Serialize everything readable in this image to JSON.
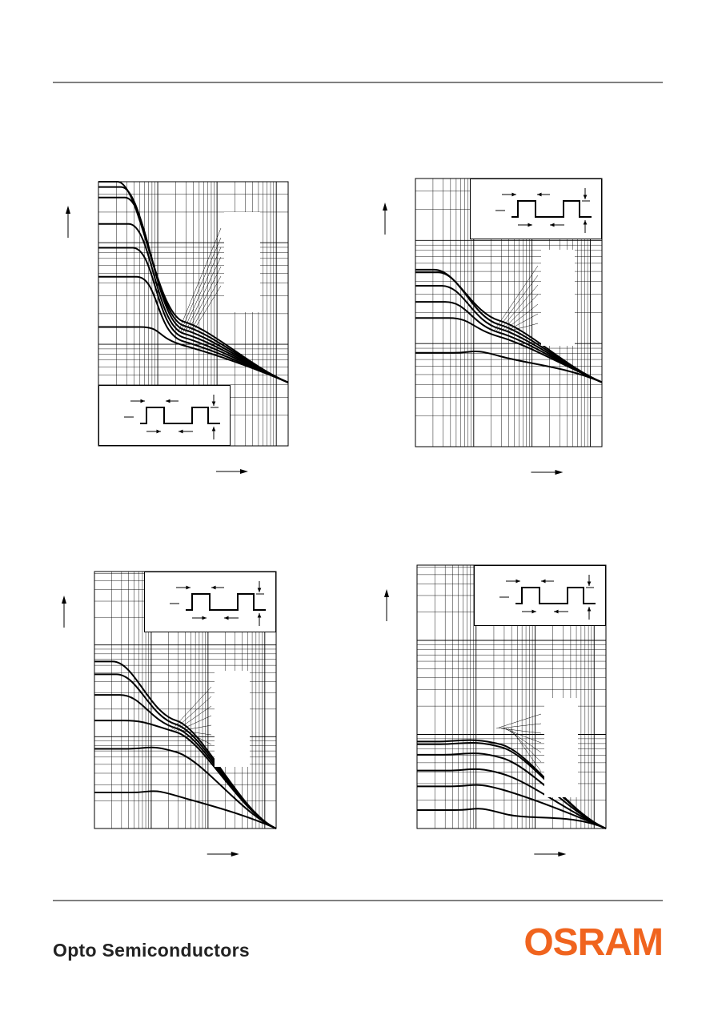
{
  "footer": {
    "text": "Opto Semiconductors",
    "logo": "OSRAM"
  }
}
